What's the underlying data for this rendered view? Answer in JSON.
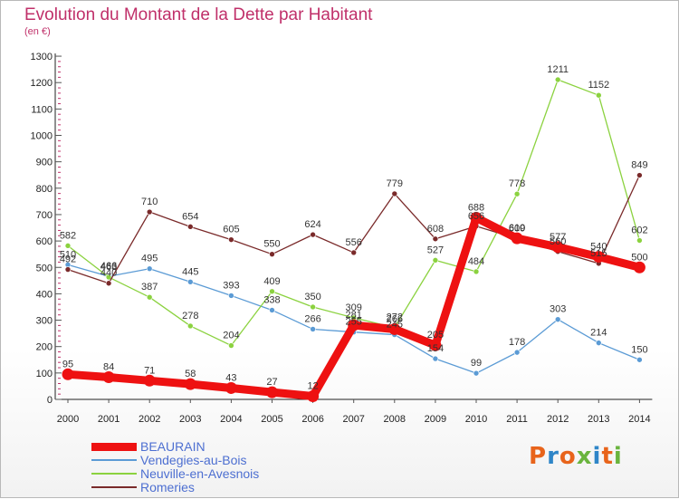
{
  "title": "Evolution du Montant de la Dette par Habitant",
  "subtitle": "(en €)",
  "logo": "Proxiti",
  "chart_data": {
    "type": "line",
    "x": [
      "2000",
      "2001",
      "2002",
      "2003",
      "2004",
      "2005",
      "2006",
      "2007",
      "2008",
      "2009",
      "2010",
      "2011",
      "2012",
      "2013",
      "2014"
    ],
    "yticks": [
      0,
      100,
      200,
      300,
      400,
      500,
      600,
      700,
      800,
      900,
      1000,
      1100,
      1200,
      1300
    ],
    "ylim": [
      0,
      1300
    ],
    "grid": false,
    "legend_position": "bottom-left",
    "series": [
      {
        "name": "BEAURAIN",
        "color": "#ee1111",
        "values": [
          95,
          84,
          71,
          58,
          43,
          27,
          12,
          281,
          266,
          205,
          688,
          610,
          577,
          540,
          500
        ],
        "labels": [
          "95",
          "84",
          "71",
          "58",
          "43",
          "27",
          "12",
          "281",
          "266",
          "205",
          "688",
          "610",
          "577",
          "540",
          "500"
        ]
      },
      {
        "name": "Vendegies-au-Bois",
        "color": "#5b9bd5",
        "values": [
          510,
          466,
          495,
          445,
          393,
          338,
          266,
          255,
          245,
          154,
          99,
          178,
          303,
          214,
          150
        ],
        "labels": [
          "510",
          "466",
          "495",
          "445",
          "393",
          "338",
          "266",
          "255",
          "245",
          "154",
          "99",
          "178",
          "303",
          "214",
          "150"
        ]
      },
      {
        "name": "Neuville-en-Avesnois",
        "color": "#8bd23f",
        "values": [
          582,
          463,
          387,
          278,
          204,
          409,
          350,
          309,
          272,
          527,
          484,
          778,
          1211,
          1152,
          602
        ],
        "labels": [
          "582",
          "463",
          "387",
          "278",
          "204",
          "409",
          "350",
          "309",
          "272",
          "527",
          "484",
          "778",
          "1211",
          "1152",
          "602"
        ]
      },
      {
        "name": "Romeries",
        "color": "#7a2a2a",
        "values": [
          492,
          440,
          710,
          654,
          605,
          550,
          624,
          556,
          779,
          608,
          656,
          609,
          560,
          515,
          849
        ],
        "labels": [
          "492",
          "440",
          "710",
          "654",
          "605",
          "550",
          "624",
          "556",
          "779",
          "608",
          "656",
          "609",
          "560",
          "515",
          "849"
        ]
      }
    ]
  }
}
